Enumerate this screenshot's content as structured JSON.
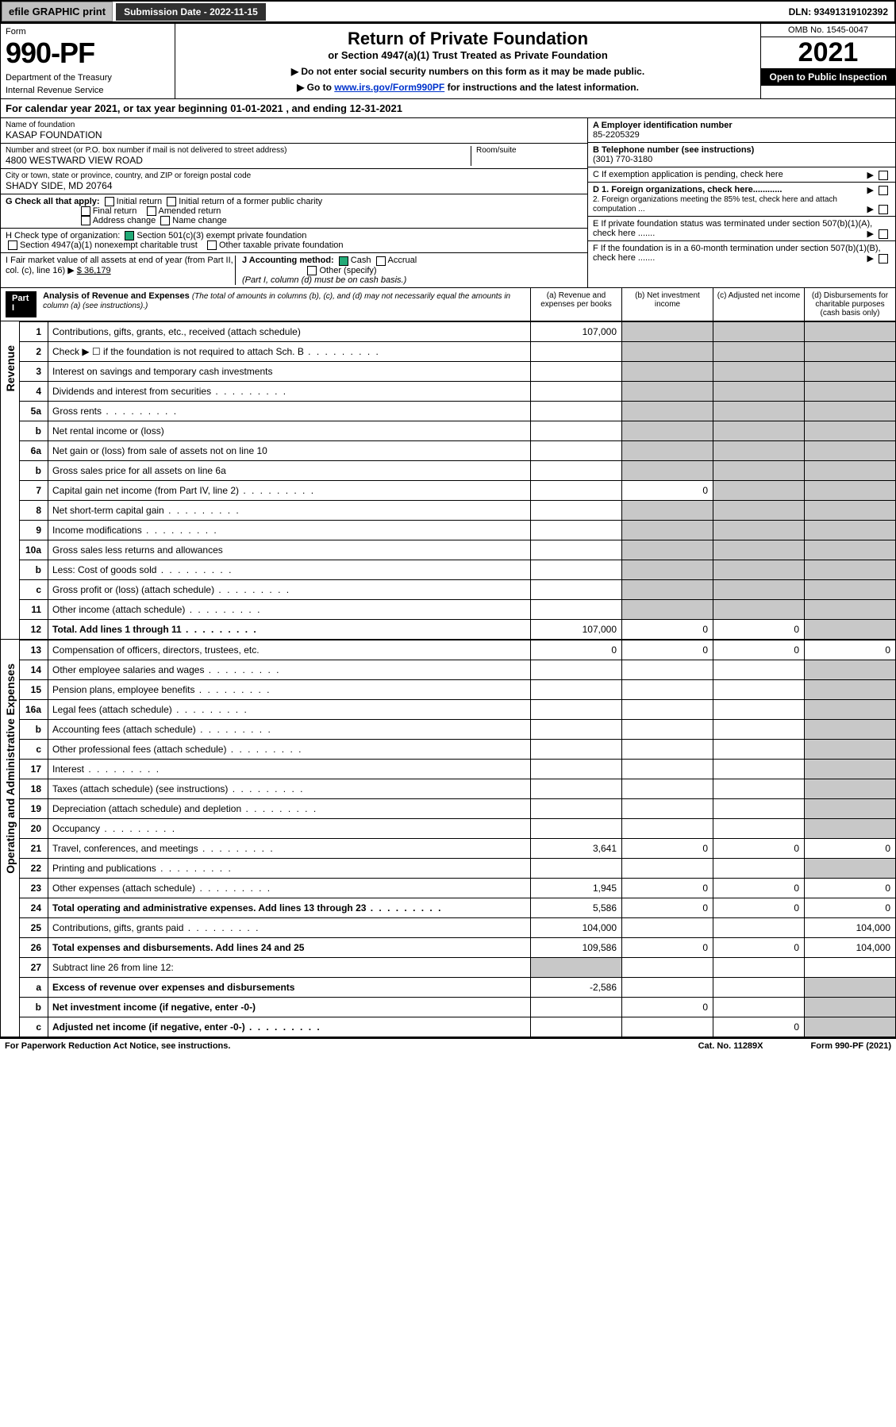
{
  "topbar": {
    "efile": "efile GRAPHIC print",
    "submission": "Submission Date - 2022-11-15",
    "dln": "DLN: 93491319102392"
  },
  "header": {
    "form": "Form",
    "number": "990-PF",
    "dept": "Department of the Treasury",
    "irs": "Internal Revenue Service",
    "title": "Return of Private Foundation",
    "subtitle": "or Section 4947(a)(1) Trust Treated as Private Foundation",
    "note1": "▶ Do not enter social security numbers on this form as it may be made public.",
    "note2": "▶ Go to ",
    "link": "www.irs.gov/Form990PF",
    "note2b": " for instructions and the latest information.",
    "omb": "OMB No. 1545-0047",
    "year": "2021",
    "open": "Open to Public Inspection"
  },
  "calendar": "For calendar year 2021, or tax year beginning 01-01-2021              , and ending 12-31-2021",
  "foundation": {
    "name_lbl": "Name of foundation",
    "name": "KASAP FOUNDATION",
    "addr_lbl": "Number and street (or P.O. box number if mail is not delivered to street address)",
    "addr": "4800 WESTWARD VIEW ROAD",
    "room_lbl": "Room/suite",
    "city_lbl": "City or town, state or province, country, and ZIP or foreign postal code",
    "city": "SHADY SIDE, MD  20764"
  },
  "right": {
    "A_lbl": "A Employer identification number",
    "A": "85-2205329",
    "B_lbl": "B Telephone number (see instructions)",
    "B": "(301) 770-3180",
    "C": "C If exemption application is pending, check here",
    "D1": "D 1. Foreign organizations, check here............",
    "D2": "2. Foreign organizations meeting the 85% test, check here and attach computation ...",
    "E": "E  If private foundation status was terminated under section 507(b)(1)(A), check here .......",
    "F": "F  If the foundation is in a 60-month termination under section 507(b)(1)(B), check here ......."
  },
  "G": {
    "lbl": "G Check all that apply:",
    "opts": [
      "Initial return",
      "Initial return of a former public charity",
      "Final return",
      "Amended return",
      "Address change",
      "Name change"
    ]
  },
  "H": {
    "lbl": "H Check type of organization:",
    "a": "Section 501(c)(3) exempt private foundation",
    "b": "Section 4947(a)(1) nonexempt charitable trust",
    "c": "Other taxable private foundation"
  },
  "I": {
    "lbl": "I Fair market value of all assets at end of year (from Part II, col. (c), line 16)",
    "val": "$  36,179"
  },
  "J": {
    "lbl": "J Accounting method:",
    "cash": "Cash",
    "accrual": "Accrual",
    "other": "Other (specify)",
    "note": "(Part I, column (d) must be on cash basis.)"
  },
  "part1": {
    "label": "Part I",
    "title": "Analysis of Revenue and Expenses",
    "title_note": "(The total of amounts in columns (b), (c), and (d) may not necessarily equal the amounts in column (a) (see instructions).)",
    "cols": [
      "(a)  Revenue and expenses per books",
      "(b)  Net investment income",
      "(c)  Adjusted net income",
      "(d)  Disbursements for charitable purposes (cash basis only)"
    ]
  },
  "side": {
    "rev": "Revenue",
    "exp": "Operating and Administrative Expenses"
  },
  "rows": [
    {
      "n": "1",
      "d": "Contributions, gifts, grants, etc., received (attach schedule)",
      "a": "107,000"
    },
    {
      "n": "2",
      "d": "Check ▶ ☐ if the foundation is not required to attach Sch. B",
      "dots": true
    },
    {
      "n": "3",
      "d": "Interest on savings and temporary cash investments"
    },
    {
      "n": "4",
      "d": "Dividends and interest from securities",
      "dots": true
    },
    {
      "n": "5a",
      "d": "Gross rents",
      "dots": true
    },
    {
      "n": "b",
      "d": "Net rental income or (loss)",
      "blank_after": true
    },
    {
      "n": "6a",
      "d": "Net gain or (loss) from sale of assets not on line 10"
    },
    {
      "n": "b",
      "d": "Gross sales price for all assets on line 6a",
      "blank_after": true
    },
    {
      "n": "7",
      "d": "Capital gain net income (from Part IV, line 2)",
      "dots": true,
      "b": "0"
    },
    {
      "n": "8",
      "d": "Net short-term capital gain",
      "dots": true
    },
    {
      "n": "9",
      "d": "Income modifications",
      "dots": true
    },
    {
      "n": "10a",
      "d": "Gross sales less returns and allowances",
      "blank_after": true
    },
    {
      "n": "b",
      "d": "Less: Cost of goods sold",
      "dots": true,
      "blank_after": true
    },
    {
      "n": "c",
      "d": "Gross profit or (loss) (attach schedule)",
      "dots": true
    },
    {
      "n": "11",
      "d": "Other income (attach schedule)",
      "dots": true
    },
    {
      "n": "12",
      "d": "Total. Add lines 1 through 11",
      "dots": true,
      "bold": true,
      "a": "107,000",
      "b": "0",
      "c": "0"
    }
  ],
  "exp_rows": [
    {
      "n": "13",
      "d": "Compensation of officers, directors, trustees, etc.",
      "a": "0",
      "b": "0",
      "c": "0",
      "e": "0"
    },
    {
      "n": "14",
      "d": "Other employee salaries and wages",
      "dots": true
    },
    {
      "n": "15",
      "d": "Pension plans, employee benefits",
      "dots": true
    },
    {
      "n": "16a",
      "d": "Legal fees (attach schedule)",
      "dots": true
    },
    {
      "n": "b",
      "d": "Accounting fees (attach schedule)",
      "dots": true
    },
    {
      "n": "c",
      "d": "Other professional fees (attach schedule)",
      "dots": true
    },
    {
      "n": "17",
      "d": "Interest",
      "dots": true
    },
    {
      "n": "18",
      "d": "Taxes (attach schedule) (see instructions)",
      "dots": true
    },
    {
      "n": "19",
      "d": "Depreciation (attach schedule) and depletion",
      "dots": true
    },
    {
      "n": "20",
      "d": "Occupancy",
      "dots": true
    },
    {
      "n": "21",
      "d": "Travel, conferences, and meetings",
      "dots": true,
      "a": "3,641",
      "b": "0",
      "c": "0",
      "e": "0"
    },
    {
      "n": "22",
      "d": "Printing and publications",
      "dots": true
    },
    {
      "n": "23",
      "d": "Other expenses (attach schedule)",
      "dots": true,
      "a": "1,945",
      "b": "0",
      "c": "0",
      "e": "0"
    },
    {
      "n": "24",
      "d": "Total operating and administrative expenses. Add lines 13 through 23",
      "dots": true,
      "bold": true,
      "a": "5,586",
      "b": "0",
      "c": "0",
      "e": "0"
    },
    {
      "n": "25",
      "d": "Contributions, gifts, grants paid",
      "dots": true,
      "a": "104,000",
      "e": "104,000"
    },
    {
      "n": "26",
      "d": "Total expenses and disbursements. Add lines 24 and 25",
      "bold": true,
      "a": "109,586",
      "b": "0",
      "c": "0",
      "e": "104,000"
    },
    {
      "n": "27",
      "d": "Subtract line 26 from line 12:"
    },
    {
      "n": "a",
      "d": "Excess of revenue over expenses and disbursements",
      "bold": true,
      "a": "-2,586"
    },
    {
      "n": "b",
      "d": "Net investment income (if negative, enter -0-)",
      "bold": true,
      "b": "0"
    },
    {
      "n": "c",
      "d": "Adjusted net income (if negative, enter -0-)",
      "bold": true,
      "dots": true,
      "c": "0"
    }
  ],
  "footer": {
    "left": "For Paperwork Reduction Act Notice, see instructions.",
    "mid": "Cat. No. 11289X",
    "right": "Form 990-PF (2021)"
  }
}
